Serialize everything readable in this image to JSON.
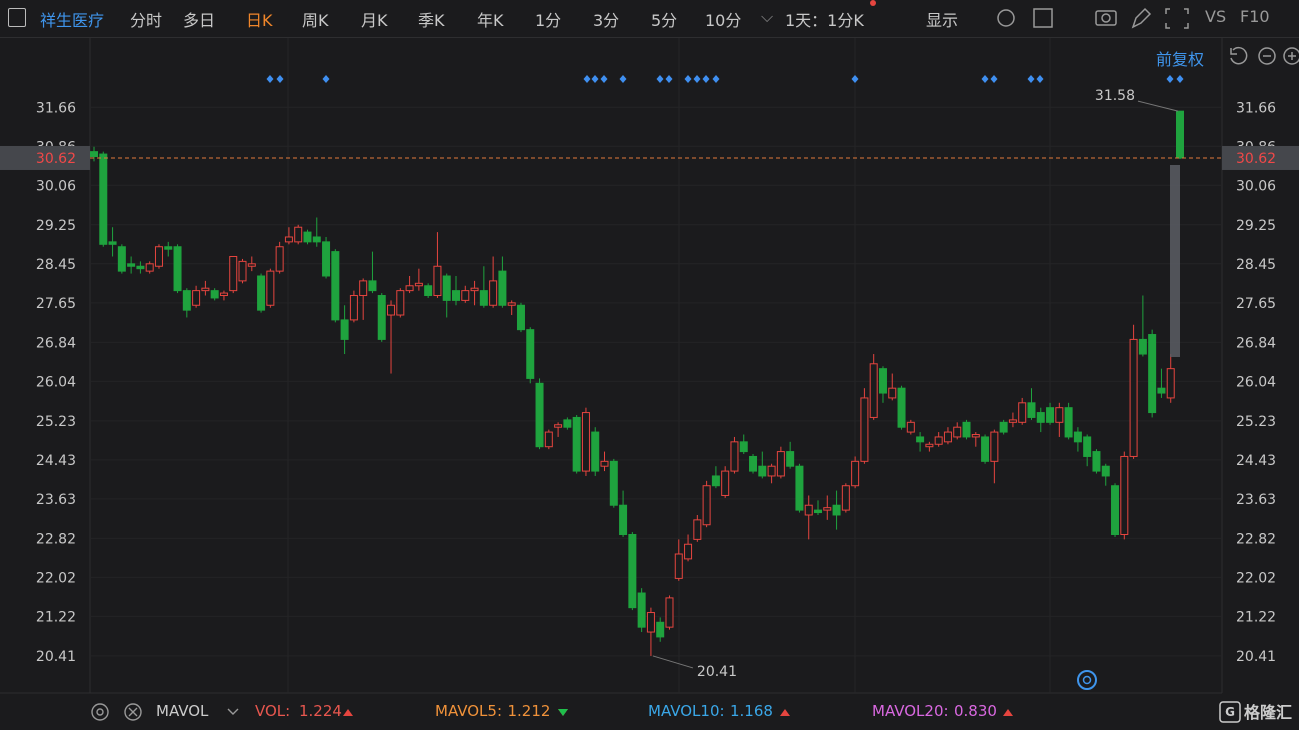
{
  "toolbar": {
    "stock": "祥生医疗",
    "tabs": [
      "分时",
      "多日",
      "日K",
      "周K",
      "月K",
      "季K",
      "年K",
      "1分",
      "3分",
      "5分",
      "10分"
    ],
    "period": "1天：1分K",
    "display": "显示",
    "vs": "VS",
    "f10": "F10",
    "adjust": "前复权"
  },
  "chart_data": {
    "type": "candlestick",
    "open": [
      30.75,
      30.7,
      28.9,
      28.8,
      28.45,
      28.4,
      28.3,
      28.4,
      28.8,
      28.8,
      27.9,
      27.6,
      27.9,
      27.9,
      27.8,
      27.9,
      28.1,
      28.4,
      28.2,
      27.6,
      28.3,
      28.9,
      28.9,
      29.1,
      29.0,
      28.9,
      28.7,
      27.3,
      27.3,
      27.8,
      28.1,
      27.8,
      27.4,
      27.4,
      27.9,
      28.0,
      28.0,
      27.8,
      28.2,
      27.9,
      27.7,
      27.9,
      27.9,
      27.6,
      28.3,
      27.6,
      27.6,
      27.1,
      26.0,
      24.7,
      25.1,
      25.25,
      25.3,
      24.2,
      25.0,
      24.3,
      24.4,
      23.5,
      22.9,
      21.7,
      20.9,
      21.1,
      21.0,
      22.0,
      22.4,
      22.8,
      23.1,
      24.1,
      23.7,
      24.2,
      24.8,
      24.5,
      24.3,
      24.1,
      24.1,
      24.6,
      24.3,
      23.3,
      23.4,
      23.4,
      23.5,
      23.4,
      23.9,
      24.4,
      25.3,
      26.3,
      25.7,
      25.9,
      25.0,
      24.9,
      24.7,
      24.75,
      24.8,
      24.9,
      25.2,
      24.9,
      24.9,
      24.4,
      25.2,
      25.2,
      25.2,
      25.6,
      25.4,
      25.5,
      25.2,
      25.5,
      25.0,
      24.9,
      24.6,
      24.3,
      23.9,
      22.9,
      24.5,
      26.9,
      27.0,
      25.9,
      25.7,
      31.58
    ],
    "high": [
      30.85,
      30.75,
      29.2,
      28.85,
      28.6,
      28.5,
      28.5,
      28.85,
      28.9,
      28.85,
      27.95,
      28.0,
      28.1,
      27.95,
      27.9,
      28.6,
      28.55,
      28.6,
      28.25,
      28.35,
      28.9,
      29.2,
      29.25,
      29.15,
      29.4,
      29.0,
      28.75,
      27.6,
      27.9,
      28.15,
      28.7,
      27.85,
      27.7,
      27.95,
      28.2,
      28.35,
      28.05,
      29.1,
      28.25,
      28.2,
      28.0,
      28.1,
      28.4,
      28.6,
      28.6,
      27.7,
      27.65,
      27.15,
      26.1,
      25.05,
      25.2,
      25.3,
      25.35,
      25.5,
      25.1,
      24.6,
      24.45,
      23.8,
      22.95,
      21.8,
      21.4,
      21.2,
      21.65,
      22.8,
      22.9,
      23.3,
      24.0,
      24.3,
      24.3,
      24.9,
      24.95,
      24.55,
      24.6,
      24.35,
      24.7,
      24.8,
      24.35,
      23.7,
      23.6,
      23.7,
      23.8,
      23.95,
      24.5,
      25.9,
      26.6,
      26.35,
      26.2,
      25.95,
      25.25,
      25.0,
      24.8,
      25.0,
      25.1,
      25.2,
      25.25,
      25.0,
      24.95,
      25.05,
      25.25,
      25.4,
      25.7,
      25.9,
      25.5,
      25.6,
      25.6,
      25.6,
      25.1,
      24.95,
      24.65,
      24.35,
      23.95,
      24.6,
      27.2,
      27.8,
      27.1,
      26.3,
      26.6,
      31.58
    ],
    "low": [
      30.55,
      28.8,
      28.6,
      28.25,
      28.25,
      28.25,
      28.25,
      28.35,
      28.6,
      27.85,
      27.35,
      27.55,
      27.8,
      27.7,
      27.7,
      27.85,
      28.05,
      28.3,
      27.45,
      27.55,
      28.25,
      28.85,
      28.85,
      28.85,
      28.8,
      28.15,
      27.25,
      26.6,
      27.25,
      27.3,
      27.85,
      26.85,
      26.2,
      27.35,
      27.85,
      27.9,
      27.75,
      27.75,
      27.35,
      27.6,
      27.65,
      27.6,
      27.55,
      27.55,
      27.55,
      27.4,
      27.05,
      26.0,
      24.65,
      24.65,
      24.9,
      25.05,
      24.15,
      24.1,
      24.1,
      24.2,
      23.45,
      22.85,
      21.35,
      20.9,
      20.41,
      20.7,
      20.95,
      21.95,
      22.35,
      22.75,
      23.05,
      23.85,
      23.65,
      24.15,
      24.55,
      24.15,
      24.05,
      23.95,
      24.05,
      24.25,
      23.35,
      22.8,
      23.3,
      23.2,
      23.0,
      23.35,
      23.85,
      24.35,
      25.25,
      25.6,
      25.65,
      25.05,
      24.95,
      24.6,
      24.6,
      24.7,
      24.75,
      24.85,
      24.85,
      24.7,
      24.35,
      23.95,
      24.95,
      25.1,
      25.15,
      25.25,
      25.0,
      25.15,
      24.9,
      24.85,
      24.6,
      24.3,
      24.15,
      23.9,
      22.85,
      22.8,
      24.45,
      26.55,
      25.3,
      25.7,
      25.6,
      30.6
    ],
    "close": [
      30.65,
      28.85,
      28.85,
      28.3,
      28.4,
      28.35,
      28.45,
      28.8,
      28.75,
      27.9,
      27.5,
      27.9,
      27.95,
      27.75,
      27.85,
      28.6,
      28.5,
      28.45,
      27.5,
      28.3,
      28.8,
      29.0,
      29.2,
      28.9,
      28.9,
      28.2,
      27.3,
      26.9,
      27.8,
      28.1,
      27.9,
      26.9,
      27.6,
      27.9,
      28.0,
      28.05,
      27.8,
      28.4,
      27.7,
      27.7,
      27.9,
      27.95,
      27.6,
      28.1,
      27.6,
      27.65,
      27.1,
      26.1,
      24.7,
      25.0,
      25.15,
      25.1,
      24.2,
      25.4,
      24.2,
      24.4,
      23.5,
      22.9,
      21.4,
      21.0,
      21.3,
      20.8,
      21.6,
      22.5,
      22.7,
      23.2,
      23.9,
      23.9,
      24.2,
      24.8,
      24.6,
      24.2,
      24.1,
      24.3,
      24.6,
      24.3,
      23.4,
      23.5,
      23.35,
      23.45,
      23.3,
      23.9,
      24.4,
      25.7,
      26.4,
      25.8,
      25.9,
      25.1,
      25.2,
      24.8,
      24.75,
      24.9,
      25.0,
      25.1,
      24.9,
      24.95,
      24.4,
      25.0,
      25.0,
      25.25,
      25.6,
      25.3,
      25.2,
      25.2,
      25.5,
      24.9,
      24.8,
      24.5,
      24.2,
      24.1,
      22.9,
      24.5,
      26.9,
      26.6,
      25.4,
      25.8,
      26.3,
      30.62
    ],
    "ylim": [
      19.65,
      33.08
    ],
    "yticks": [
      31.66,
      30.86,
      30.06,
      29.25,
      28.45,
      27.65,
      26.84,
      26.04,
      25.23,
      24.43,
      23.63,
      22.82,
      22.02,
      21.22,
      20.41
    ],
    "last_price": 30.62,
    "up_color": "#e5453f",
    "down_color": "#1fa33e",
    "grid": true
  },
  "indicators": {
    "name": "MAVOL",
    "items": [
      {
        "label": "VOL:",
        "value": "1.224"
      },
      {
        "label": "MAVOL5:",
        "value": "1.212"
      },
      {
        "label": "MAVOL10:",
        "value": "1.168"
      },
      {
        "label": "MAVOL20:",
        "value": "0.830"
      }
    ]
  },
  "logo": "格隆汇"
}
